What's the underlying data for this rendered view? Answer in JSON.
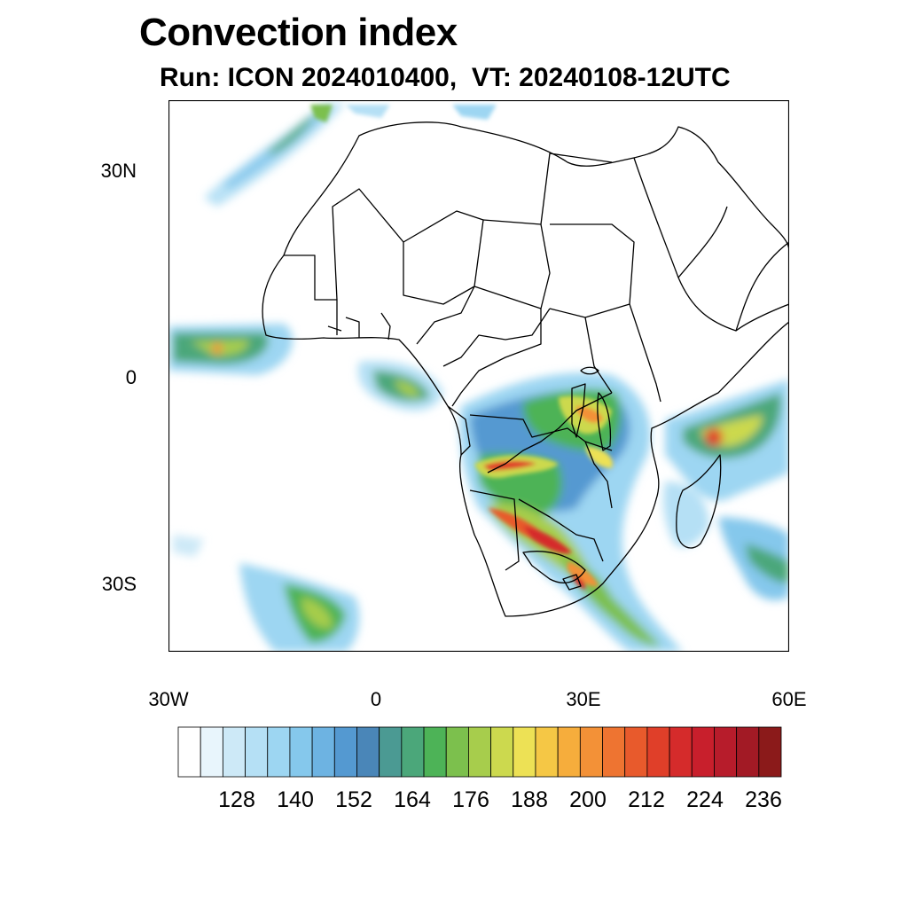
{
  "title": "Convection index",
  "subtitle": "Run: ICON 2024010400,  VT: 20240108-12UTC",
  "map": {
    "extent": {
      "lon": [
        -30,
        60
      ],
      "lat": [
        -40,
        40
      ]
    },
    "lat_labels": [
      "30N",
      "0",
      "30S"
    ],
    "lon_labels": [
      "30W",
      "0",
      "30E",
      "60E"
    ]
  },
  "colorbar": {
    "colors": [
      "#ffffff",
      "#e8f5fc",
      "#cde9f7",
      "#b5e0f5",
      "#9dd6f2",
      "#85c8ec",
      "#6db3e2",
      "#5499d1",
      "#4a86b8",
      "#4b9a93",
      "#4ba77a",
      "#4db357",
      "#7cc04d",
      "#a7cd4c",
      "#ccd94e",
      "#ede155",
      "#f5c745",
      "#f6ad3c",
      "#f39137",
      "#ee7431",
      "#e85a2c",
      "#e03f29",
      "#d52b2b",
      "#c81f2c",
      "#b71c2b",
      "#a21a25",
      "#8b1a1a"
    ],
    "labels": [
      "128",
      "140",
      "152",
      "164",
      "176",
      "188",
      "200",
      "212",
      "224",
      "236"
    ]
  }
}
